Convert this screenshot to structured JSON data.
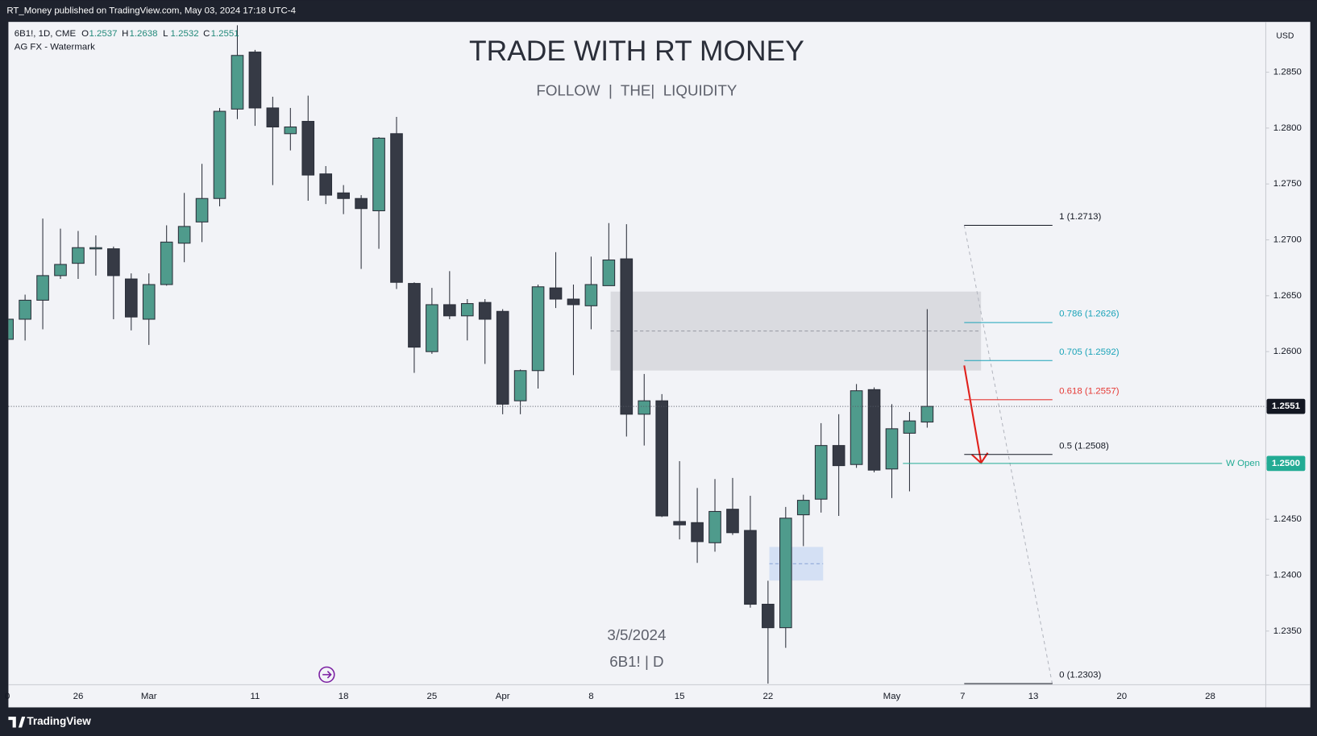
{
  "header": {
    "published": "RT_Money published on TradingView.com, May 03, 2024 17:18 UTC-4"
  },
  "chart_data": {
    "type": "candlestick",
    "symbol_info": "6B1!, 1D, CME",
    "indicator": "AG FX - Watermark",
    "ohlc_labels": [
      "O",
      "H",
      "L",
      "C"
    ],
    "watermark": {
      "title": "TRADE WITH RT MONEY",
      "subtitle": "FOLLOW  |  THE|  LIQUIDITY",
      "date": "3/5/2024",
      "symbol": "6B1! | D"
    },
    "currency": "USD",
    "categories": [
      "0",
      null,
      null,
      null,
      "26",
      null,
      null,
      null,
      "Mar",
      null,
      null,
      null,
      null,
      null,
      "11",
      null,
      null,
      null,
      null,
      "18",
      null,
      null,
      null,
      null,
      "25",
      null,
      null,
      null,
      "Apr",
      null,
      null,
      null,
      null,
      "8",
      null,
      null,
      null,
      null,
      "15",
      null,
      null,
      null,
      null,
      "22",
      null,
      null,
      null,
      null,
      null,
      null,
      "May",
      null,
      null,
      null,
      "7",
      null,
      null,
      null,
      "13",
      null,
      null,
      null,
      null,
      "20",
      null,
      null,
      null,
      null,
      "28",
      null,
      null,
      null
    ],
    "open": [
      1.2611,
      1.2629,
      1.2646,
      1.2668,
      1.2679,
      1.2692,
      1.2692,
      1.2665,
      1.2629,
      1.266,
      1.2697,
      1.2716,
      1.2737,
      1.2817,
      1.2868,
      1.2818,
      1.2795,
      1.2806,
      1.2759,
      1.2742,
      1.2737,
      1.2726,
      1.2795,
      1.2661,
      1.26,
      1.2642,
      1.2632,
      1.2644,
      1.2636,
      1.2556,
      1.2583,
      1.2657,
      1.2647,
      1.2641,
      1.2659,
      1.2683,
      1.2544,
      1.2556,
      1.2448,
      1.2447,
      1.2429,
      1.2459,
      1.244,
      1.2374,
      1.2353,
      1.2454,
      1.2468,
      1.2516,
      1.2499,
      1.2566,
      1.2495,
      1.2527,
      1.2537,
      null,
      null,
      null,
      null,
      null,
      null,
      null,
      null,
      null,
      null,
      null,
      null,
      null,
      null,
      null,
      null,
      null,
      null,
      null
    ],
    "high": [
      1.2675,
      1.2651,
      1.2719,
      1.271,
      1.2708,
      1.2704,
      1.2694,
      1.267,
      1.267,
      1.2713,
      1.2742,
      1.2768,
      1.2818,
      1.2892,
      1.287,
      1.2828,
      1.2818,
      1.2829,
      1.2766,
      1.2749,
      1.274,
      1.2792,
      1.281,
      1.2662,
      1.2657,
      1.2672,
      1.2647,
      1.2647,
      1.2638,
      1.2584,
      1.266,
      1.2689,
      1.266,
      1.2685,
      1.2715,
      1.2714,
      1.258,
      1.2562,
      1.2502,
      1.2478,
      1.2486,
      1.2487,
      1.2471,
      1.2395,
      1.2461,
      1.2472,
      1.2536,
      1.2544,
      1.2571,
      1.2568,
      1.2553,
      1.2546,
      1.2638,
      null,
      null,
      null,
      null,
      null,
      null,
      null,
      null,
      null,
      null,
      null,
      null,
      null,
      null,
      null,
      null,
      null,
      null,
      null
    ],
    "low": [
      1.2586,
      1.261,
      1.262,
      1.2665,
      1.2665,
      1.2668,
      1.2629,
      1.2619,
      1.2606,
      1.2659,
      1.268,
      1.2698,
      1.273,
      1.2808,
      1.2802,
      1.2749,
      1.278,
      1.2735,
      1.2732,
      1.2723,
      1.2674,
      1.2692,
      1.2656,
      1.2581,
      1.2598,
      1.2629,
      1.261,
      1.2589,
      1.2544,
      1.2544,
      1.2567,
      1.2639,
      1.2579,
      1.262,
      1.2659,
      1.2524,
      1.2516,
      1.2452,
      1.2432,
      1.2411,
      1.2421,
      1.2436,
      1.2371,
      1.2303,
      1.2335,
      1.2426,
      1.2456,
      1.2453,
      1.2496,
      1.2492,
      1.2469,
      1.2475,
      1.2532,
      null,
      null,
      null,
      null,
      null,
      null,
      null,
      null,
      null,
      null,
      null,
      null,
      null,
      null,
      null,
      null,
      null,
      null,
      null
    ],
    "close": [
      1.2629,
      1.2646,
      1.2668,
      1.2678,
      1.2693,
      1.2693,
      1.2668,
      1.2631,
      1.266,
      1.2698,
      1.2712,
      1.2737,
      1.2815,
      1.2865,
      1.2818,
      1.2801,
      1.2801,
      1.2758,
      1.274,
      1.2737,
      1.2728,
      1.2791,
      1.2662,
      1.2604,
      1.2642,
      1.2632,
      1.2643,
      1.2629,
      1.2553,
      1.2583,
      1.2658,
      1.2647,
      1.2642,
      1.266,
      1.2682,
      1.2544,
      1.2556,
      1.2453,
      1.2445,
      1.243,
      1.2457,
      1.2438,
      1.2374,
      1.2353,
      1.2451,
      1.2467,
      1.2516,
      1.2498,
      1.2565,
      1.2494,
      1.2531,
      1.2538,
      1.2551,
      null,
      null,
      null,
      null,
      null,
      null,
      null,
      null,
      null,
      null,
      null,
      null,
      null,
      null,
      null,
      null,
      null,
      null,
      null
    ],
    "colors": {
      "up": "#4f9b8c",
      "down": "#363a45"
    },
    "ylim": [
      1.2302,
      1.2895
    ],
    "yticks": [
      {
        "value": 1.235,
        "label": "1.2350"
      },
      {
        "value": 1.24,
        "label": "1.2400"
      },
      {
        "value": 1.245,
        "label": "1.2450"
      },
      {
        "value": 1.25,
        "label": "1.2500"
      },
      {
        "value": 1.255,
        "label": "1.2550"
      },
      {
        "value": 1.26,
        "label": "1.2600"
      },
      {
        "value": 1.265,
        "label": "1.2650"
      },
      {
        "value": 1.27,
        "label": "1.2700"
      },
      {
        "value": 1.275,
        "label": "1.2750"
      },
      {
        "value": 1.28,
        "label": "1.2800"
      },
      {
        "value": 1.285,
        "label": "1.2850"
      }
    ],
    "grid": false,
    "fib_levels": [
      {
        "label": "1 (1.2713)",
        "value": 1.2713,
        "color": "#131722"
      },
      {
        "label": "0.786 (1.2626)",
        "value": 1.2626,
        "color": "#1aa3b8"
      },
      {
        "label": "0.705 (1.2592)",
        "value": 1.2592,
        "color": "#1aa3b8"
      },
      {
        "label": "0.618 (1.2557)",
        "value": 1.2557,
        "color": "#e53935"
      },
      {
        "label": "0.5 (1.2508)",
        "value": 1.2508,
        "color": "#131722"
      },
      {
        "label": "0 (1.2303)",
        "value": 1.2303,
        "color": "#131722"
      }
    ],
    "w_open": {
      "name": "W Open",
      "value": 1.25,
      "value_label": "1.2500",
      "color": "#22ab94"
    }
  },
  "footer": {
    "brand": "TradingView"
  }
}
